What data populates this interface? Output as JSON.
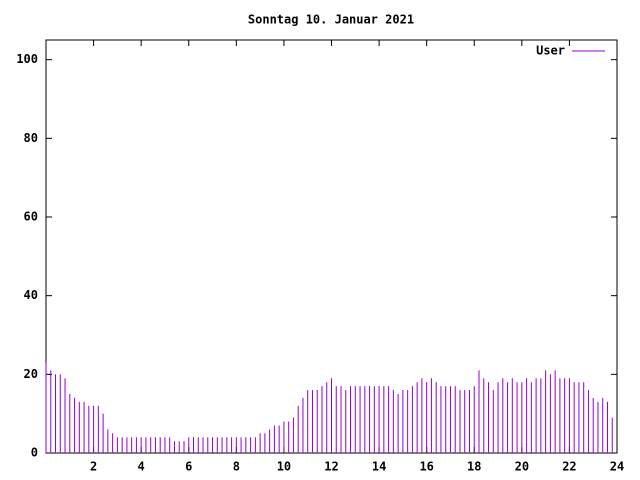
{
  "chart_data": {
    "type": "impulse",
    "title": "Sonntag 10. Januar 2021",
    "series": [
      {
        "name": "User",
        "color": "#9400d3",
        "x": [
          0,
          0.2,
          0.4,
          0.6,
          0.8,
          1,
          1.2,
          1.4,
          1.6,
          1.8,
          2,
          2.2,
          2.4,
          2.6,
          2.8,
          3,
          3.2,
          3.4,
          3.6,
          3.8,
          4,
          4.2,
          4.4,
          4.6,
          4.8,
          5,
          5.2,
          5.4,
          5.6,
          5.8,
          6,
          6.2,
          6.4,
          6.6,
          6.8,
          7,
          7.2,
          7.4,
          7.6,
          7.8,
          8,
          8.2,
          8.4,
          8.6,
          8.8,
          9,
          9.2,
          9.4,
          9.6,
          9.8,
          10,
          10.2,
          10.4,
          10.6,
          10.8,
          11,
          11.2,
          11.4,
          11.6,
          11.8,
          12,
          12.2,
          12.4,
          12.6,
          12.8,
          13,
          13.2,
          13.4,
          13.6,
          13.8,
          14,
          14.2,
          14.4,
          14.6,
          14.8,
          15,
          15.2,
          15.4,
          15.6,
          15.8,
          16,
          16.2,
          16.4,
          16.6,
          16.8,
          17,
          17.2,
          17.4,
          17.6,
          17.8,
          18,
          18.2,
          18.4,
          18.6,
          18.8,
          19,
          19.2,
          19.4,
          19.6,
          19.8,
          20,
          20.2,
          20.4,
          20.6,
          20.8,
          21,
          21.2,
          21.4,
          21.6,
          21.8,
          22,
          22.2,
          22.4,
          22.6,
          22.8,
          23,
          23.2,
          23.4,
          23.6,
          23.8
        ],
        "values": [
          23,
          21,
          20,
          20,
          19,
          15,
          14,
          13,
          13,
          12,
          12,
          12,
          10,
          6,
          5,
          4,
          4,
          4,
          4,
          4,
          4,
          4,
          4,
          4,
          4,
          4,
          4,
          3,
          3,
          3,
          4,
          4,
          4,
          4,
          4,
          4,
          4,
          4,
          4,
          4,
          4,
          4,
          4,
          4,
          4,
          5,
          5,
          6,
          7,
          7,
          8,
          8,
          9,
          12,
          14,
          16,
          16,
          16,
          17,
          18,
          19,
          17,
          17,
          16,
          17,
          17,
          17,
          17,
          17,
          17,
          17,
          17,
          17,
          16,
          15,
          16,
          16,
          17,
          18,
          19,
          18,
          19,
          18,
          17,
          17,
          17,
          17,
          16,
          16,
          16,
          17,
          21,
          19,
          18,
          16,
          18,
          19,
          18,
          19,
          18,
          18,
          19,
          18,
          19,
          19,
          21,
          20,
          21,
          19,
          19,
          19,
          18,
          18,
          18,
          16,
          14,
          13,
          14,
          13,
          9
        ]
      }
    ],
    "xlim": [
      0,
      24
    ],
    "xticks": [
      2,
      4,
      6,
      8,
      10,
      12,
      14,
      16,
      18,
      20,
      22,
      24
    ],
    "ylim": [
      0,
      105
    ],
    "yticks": [
      0,
      20,
      40,
      60,
      80,
      100
    ],
    "grid": false,
    "legend": "top-right"
  }
}
